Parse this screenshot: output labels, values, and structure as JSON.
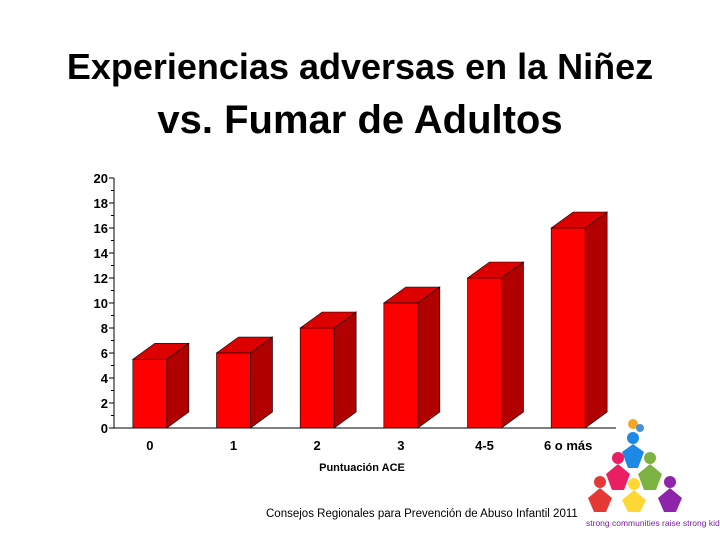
{
  "slide": {
    "title_line_1": "Experiencias adversas en la Niñez",
    "title_line_2": "vs. Fumar de Adultos",
    "footer": "Consejos Regionales para Prevención de Abuso Infantil 2011",
    "logo_caption": "strong communities raise strong kids"
  },
  "chart_data": {
    "type": "bar",
    "title": "",
    "xlabel": "Puntuación ACE",
    "ylabel": "",
    "categories": [
      "0",
      "1",
      "2",
      "3",
      "4-5",
      "6 o más"
    ],
    "values": [
      5.5,
      6,
      8,
      10,
      12,
      16
    ],
    "ylim": [
      0,
      20
    ],
    "yticks": [
      0,
      2,
      4,
      6,
      8,
      10,
      12,
      14,
      16,
      18,
      20
    ],
    "grid": false,
    "legend": "none",
    "bar_color": "#ff0000",
    "bar_side_color": "#b00000",
    "bar_top_color": "#dd0000"
  }
}
